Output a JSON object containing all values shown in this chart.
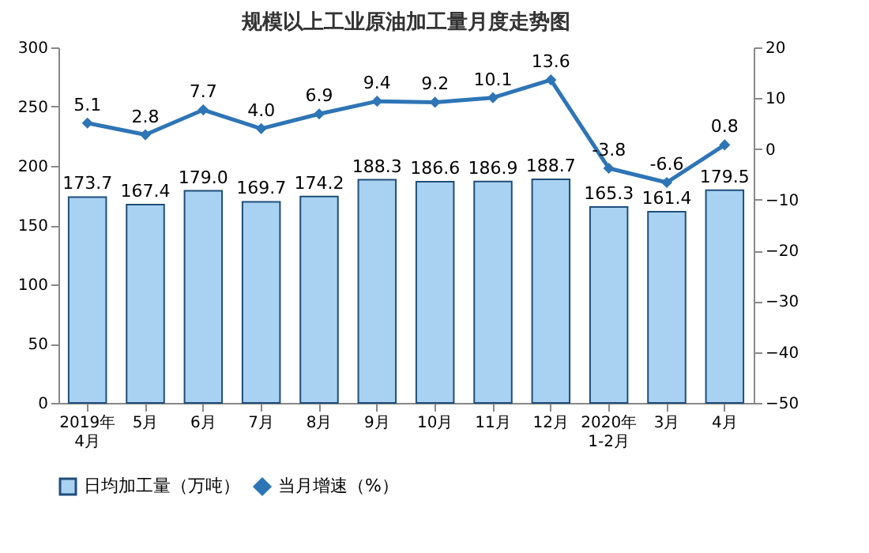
{
  "chart_data": {
    "type": "bar",
    "title": "规模以上工业原油加工量月度走势图",
    "categories": [
      "2019年\n4月",
      "5月",
      "6月",
      "7月",
      "8月",
      "9月",
      "10月",
      "11月",
      "12月",
      "2020年\n1-2月",
      "3月",
      "4月"
    ],
    "series": [
      {
        "name": "日均加工量（万吨）",
        "color": "#a9d2f2",
        "values": [
          173.7,
          167.4,
          179.0,
          169.7,
          174.2,
          188.3,
          186.6,
          186.9,
          188.7,
          165.3,
          161.4,
          179.5
        ],
        "value_labels": [
          "173.7",
          "167.4",
          "179.0",
          "169.7",
          "174.2",
          "188.3",
          "186.6",
          "186.9",
          "188.7",
          "165.3",
          "161.4",
          "179.5"
        ]
      },
      {
        "name": "当月增速（%）",
        "type": "line",
        "axis": "y2",
        "color": "#2e75b6",
        "line_style": "solid",
        "values": [
          5.1,
          2.8,
          7.7,
          4.0,
          6.9,
          9.4,
          9.2,
          10.1,
          13.6,
          -3.8,
          -6.6,
          0.8
        ],
        "value_labels": [
          "5.1",
          "2.8",
          "7.7",
          "4.0",
          "6.9",
          "9.4",
          "9.2",
          "10.1",
          "13.6",
          "-3.8",
          "-6.6",
          "0.8"
        ]
      }
    ],
    "ylim": [
      0,
      300
    ],
    "yticks": [
      0,
      50,
      100,
      150,
      200,
      250,
      300
    ],
    "y2lim": [
      -50,
      20
    ],
    "y2ticks": [
      -50,
      -40,
      -30,
      -20,
      -10,
      0,
      10,
      20
    ],
    "legend": "bottom",
    "marker": "diamond"
  }
}
